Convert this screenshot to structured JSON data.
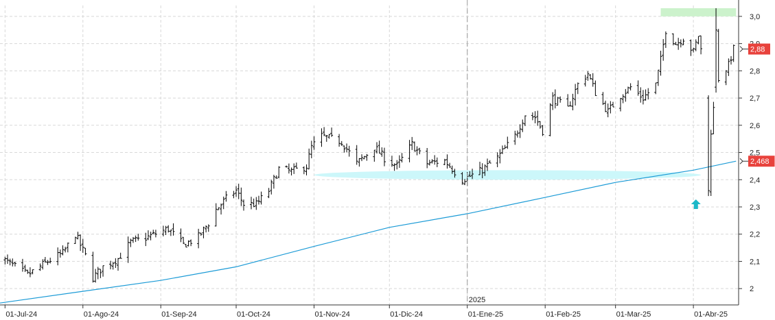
{
  "chart_data": {
    "type": "ohlc",
    "title": "",
    "xlabel": "",
    "ylabel": "",
    "ylim": [
      1.94,
      3.04
    ],
    "grid": true,
    "y_ticks": [
      {
        "value": 2.0,
        "label": "2"
      },
      {
        "value": 2.1,
        "label": "2,1"
      },
      {
        "value": 2.2,
        "label": "2,2"
      },
      {
        "value": 2.3,
        "label": "2,3"
      },
      {
        "value": 2.4,
        "label": "2,4"
      },
      {
        "value": 2.5,
        "label": "2,5"
      },
      {
        "value": 2.6,
        "label": "2,6"
      },
      {
        "value": 2.7,
        "label": "2,7"
      },
      {
        "value": 2.8,
        "label": "2,8"
      },
      {
        "value": 2.9,
        "label": "2,9"
      },
      {
        "value": 3.0,
        "label": "3,0"
      }
    ],
    "x_ticks": [
      {
        "date": "2024-07-01",
        "label": "01-Jul-24"
      },
      {
        "date": "2024-08-01",
        "label": "01-Ago-24"
      },
      {
        "date": "2024-09-01",
        "label": "01-Sep-24"
      },
      {
        "date": "2024-10-01",
        "label": "01-Oct-24"
      },
      {
        "date": "2024-11-01",
        "label": "01-Nov-24"
      },
      {
        "date": "2024-12-01",
        "label": "01-Dic-24"
      },
      {
        "date": "2025-01-01",
        "label": "01-Ene-25"
      },
      {
        "date": "2025-02-01",
        "label": "01-Feb-25"
      },
      {
        "date": "2025-03-01",
        "label": "01-Mar-25"
      },
      {
        "date": "2025-04-01",
        "label": "01-Abr-25"
      }
    ],
    "year_marker": {
      "date": "2025-01-01",
      "label": "2025"
    },
    "x_range": [
      "2024-06-29",
      "2025-04-19"
    ],
    "price_anchors": [
      [
        "2024-06-28",
        2.12
      ],
      [
        "2024-07-05",
        2.08
      ],
      [
        "2024-07-10",
        2.05
      ],
      [
        "2024-07-18",
        2.1
      ],
      [
        "2024-07-24",
        2.13
      ],
      [
        "2024-07-29",
        2.2
      ],
      [
        "2024-08-02",
        2.12
      ],
      [
        "2024-08-05",
        2.04
      ],
      [
        "2024-08-09",
        2.08
      ],
      [
        "2024-08-15",
        2.11
      ],
      [
        "2024-08-20",
        2.17
      ],
      [
        "2024-08-27",
        2.19
      ],
      [
        "2024-09-04",
        2.22
      ],
      [
        "2024-09-06",
        2.2
      ],
      [
        "2024-09-10",
        2.16
      ],
      [
        "2024-09-16",
        2.19
      ],
      [
        "2024-09-20",
        2.24
      ],
      [
        "2024-09-23",
        2.29
      ],
      [
        "2024-09-27",
        2.33
      ],
      [
        "2024-10-01",
        2.36
      ],
      [
        "2024-10-04",
        2.31
      ],
      [
        "2024-10-09",
        2.31
      ],
      [
        "2024-10-14",
        2.36
      ],
      [
        "2024-10-18",
        2.44
      ],
      [
        "2024-10-23",
        2.43
      ],
      [
        "2024-10-29",
        2.45
      ],
      [
        "2024-10-31",
        2.52
      ],
      [
        "2024-11-04",
        2.56
      ],
      [
        "2024-11-12",
        2.54
      ],
      [
        "2024-11-18",
        2.46
      ],
      [
        "2024-11-25",
        2.52
      ],
      [
        "2024-11-29",
        2.48
      ],
      [
        "2024-12-04",
        2.45
      ],
      [
        "2024-12-10",
        2.53
      ],
      [
        "2024-12-16",
        2.46
      ],
      [
        "2024-12-23",
        2.47
      ],
      [
        "2024-12-30",
        2.4
      ],
      [
        "2025-01-06",
        2.43
      ],
      [
        "2025-01-13",
        2.48
      ],
      [
        "2025-01-20",
        2.56
      ],
      [
        "2025-01-24",
        2.64
      ],
      [
        "2025-01-28",
        2.63
      ],
      [
        "2025-01-31",
        2.58
      ],
      [
        "2025-02-04",
        2.7
      ],
      [
        "2025-02-10",
        2.66
      ],
      [
        "2025-02-14",
        2.75
      ],
      [
        "2025-02-18",
        2.79
      ],
      [
        "2025-02-21",
        2.72
      ],
      [
        "2025-02-26",
        2.65
      ],
      [
        "2025-03-03",
        2.71
      ],
      [
        "2025-03-07",
        2.74
      ],
      [
        "2025-03-12",
        2.7
      ],
      [
        "2025-03-17",
        2.75
      ],
      [
        "2025-03-19",
        2.84
      ],
      [
        "2025-03-21",
        2.95
      ],
      [
        "2025-03-25",
        2.9
      ],
      [
        "2025-03-28",
        2.92
      ],
      [
        "2025-04-01",
        2.87
      ],
      [
        "2025-04-03",
        2.93
      ],
      [
        "2025-04-07",
        2.72
      ],
      [
        "2025-04-08",
        2.58
      ],
      [
        "2025-04-09",
        2.66
      ],
      [
        "2025-04-10",
        2.76
      ],
      [
        "2025-04-15",
        2.82
      ],
      [
        "2025-04-17",
        2.88
      ]
    ],
    "annotation_bars": [
      {
        "date": "2025-04-07",
        "low": 2.34,
        "high": 2.71,
        "open": 2.7,
        "close": 2.36
      },
      {
        "date": "2025-04-10",
        "low": 2.72,
        "high": 3.03,
        "open": 2.74,
        "close": 2.95
      }
    ],
    "moving_average": [
      [
        "2024-06-29",
        1.947
      ],
      [
        "2024-08-01",
        1.99
      ],
      [
        "2024-09-01",
        2.03
      ],
      [
        "2024-10-01",
        2.08
      ],
      [
        "2024-11-01",
        2.155
      ],
      [
        "2024-12-01",
        2.225
      ],
      [
        "2025-01-01",
        2.275
      ],
      [
        "2025-02-01",
        2.335
      ],
      [
        "2025-03-01",
        2.39
      ],
      [
        "2025-04-01",
        2.435
      ],
      [
        "2025-04-18",
        2.468
      ]
    ],
    "highlights": [
      {
        "shape": "rect",
        "color": "#ccf2cc",
        "x0": "2025-03-19",
        "x1": "2025-04-18",
        "y0": 3.0,
        "y1": 3.03
      },
      {
        "shape": "ellipse",
        "color": "#ccf7fa",
        "x0": "2024-11-01",
        "x1": "2025-04-04",
        "y0": 2.4,
        "y1": 2.435
      }
    ],
    "arrow": {
      "date": "2025-04-02",
      "value": 2.31,
      "direction": "up",
      "color": "#1cb8c8"
    },
    "badges": [
      {
        "label": "2,88",
        "value": 2.88,
        "color": "#e8423c"
      },
      {
        "label": "2,468",
        "value": 2.468,
        "color": "#e8423c"
      }
    ],
    "colors": {
      "bars": "#000000",
      "moving_average": "#1a9ad6",
      "grid": "#d8d8d8"
    }
  }
}
